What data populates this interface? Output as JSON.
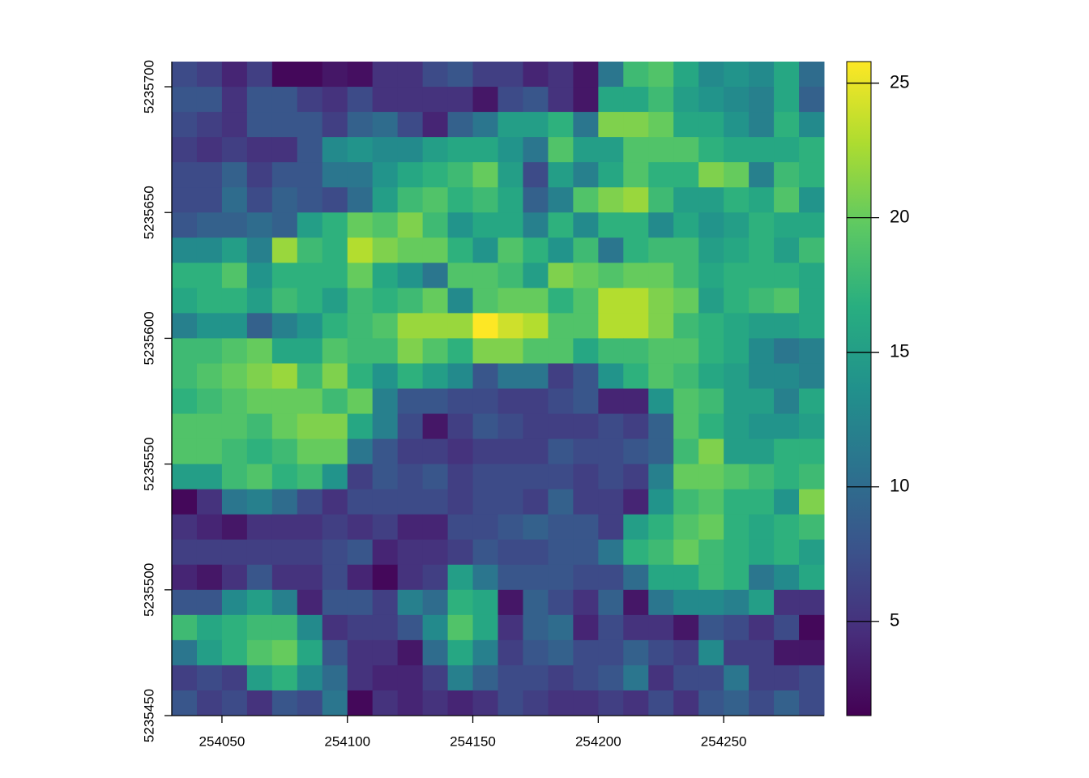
{
  "chart_data": {
    "type": "raster",
    "x": [
      254035,
      254045,
      254055,
      254065,
      254075,
      254085,
      254095,
      254105,
      254115,
      254125,
      254135,
      254145,
      254155,
      254165,
      254175,
      254185,
      254195,
      254205,
      254215,
      254225,
      254235,
      254245,
      254255,
      254265,
      254275,
      254285
    ],
    "y": [
      5235705,
      5235695,
      5235685,
      5235675,
      5235665,
      5235655,
      5235645,
      5235635,
      5235625,
      5235615,
      5235605,
      5235595,
      5235585,
      5235575,
      5235565,
      5235555,
      5235545,
      5235535,
      5235525,
      5235515,
      5235505,
      5235495,
      5235485,
      5235475,
      5235465,
      5235455
    ],
    "values": [
      [
        7,
        6,
        4,
        6,
        2,
        2,
        3,
        2.5,
        5,
        5,
        7,
        8,
        6,
        6,
        4,
        5,
        3,
        11,
        18,
        19,
        16,
        13,
        14,
        13,
        16,
        10
      ],
      [
        8,
        8,
        5,
        8,
        8,
        6,
        5,
        7,
        5,
        5,
        5,
        5,
        3,
        7,
        8,
        5,
        3,
        16,
        16,
        18,
        15,
        14,
        13,
        12,
        16,
        9
      ],
      [
        7,
        6,
        5,
        8,
        8,
        8,
        6,
        9,
        10,
        7,
        4,
        9,
        11,
        15,
        15,
        17,
        11,
        21,
        21,
        20,
        16,
        16,
        14,
        12,
        17,
        13
      ],
      [
        6,
        5,
        6,
        5,
        5,
        8,
        13,
        14,
        13,
        13,
        15,
        16,
        16,
        14,
        11,
        19,
        15,
        15,
        19,
        19,
        19,
        17,
        16,
        16,
        16,
        17
      ],
      [
        7,
        7,
        9,
        6,
        8,
        8,
        11,
        11,
        14,
        16,
        17,
        18,
        20,
        15,
        7,
        15,
        12,
        16,
        19,
        17,
        17,
        21,
        20,
        12,
        18,
        17
      ],
      [
        7,
        7,
        10,
        7,
        9,
        8,
        7,
        10,
        15,
        18,
        19,
        17,
        18,
        16,
        9,
        12,
        19,
        21,
        22,
        18,
        15,
        15,
        17,
        16,
        19,
        14
      ],
      [
        8,
        9,
        9,
        10,
        9,
        15,
        17,
        20,
        19,
        21,
        18,
        14,
        16,
        16,
        12,
        17,
        13,
        17,
        17,
        13,
        16,
        14,
        15,
        17,
        16,
        16
      ],
      [
        13,
        13,
        15,
        12,
        22,
        18,
        17,
        23,
        21,
        20,
        20,
        17,
        14,
        19,
        17,
        14,
        18,
        11,
        17,
        18,
        18,
        15,
        16,
        17,
        15,
        18
      ],
      [
        17,
        17,
        19,
        14,
        17,
        17,
        17,
        20,
        16,
        14,
        11,
        19,
        19,
        18,
        15,
        21,
        20,
        19,
        20,
        20,
        18,
        16,
        17,
        17,
        17,
        16
      ],
      [
        16,
        17,
        17,
        15,
        18,
        17,
        15,
        18,
        17,
        18,
        20,
        13,
        19,
        20,
        20,
        17,
        19,
        23,
        23,
        21,
        20,
        15,
        17,
        18,
        19,
        16
      ],
      [
        12,
        14,
        14,
        9,
        12,
        14,
        17,
        18,
        19,
        22,
        22,
        22,
        25.8,
        24,
        23,
        19,
        19,
        23,
        23,
        21,
        18,
        17,
        16,
        15,
        15,
        16
      ],
      [
        18,
        18,
        19,
        20,
        16,
        16,
        19,
        18,
        18,
        21,
        19,
        17,
        21,
        21,
        19,
        19,
        16,
        18,
        18,
        19,
        19,
        17,
        16,
        13,
        11,
        12
      ],
      [
        18,
        19,
        20,
        21,
        22,
        18,
        21,
        17,
        14,
        17,
        15,
        13,
        8,
        11,
        11,
        6,
        8,
        14,
        17,
        19,
        18,
        16,
        15,
        13,
        13,
        12
      ],
      [
        17,
        18,
        19,
        20,
        20,
        20,
        18,
        20,
        12,
        8,
        8,
        7,
        7,
        6,
        6,
        7,
        8,
        4,
        4,
        14,
        19,
        18,
        15,
        15,
        12,
        16
      ],
      [
        19,
        19,
        19,
        18,
        20,
        21,
        21,
        16,
        12,
        7,
        3,
        6,
        8,
        7,
        6,
        6,
        6,
        7,
        6,
        9,
        19,
        17,
        15,
        14,
        14,
        15
      ],
      [
        19,
        19,
        18,
        17,
        18,
        20,
        20,
        11,
        8,
        6,
        6,
        5,
        6,
        6,
        6,
        8,
        7,
        7,
        8,
        9,
        18,
        21,
        15,
        15,
        17,
        17
      ],
      [
        15,
        15,
        18,
        19,
        17,
        18,
        14,
        6,
        8,
        7,
        8,
        6,
        7,
        7,
        7,
        7,
        6,
        7,
        6,
        12,
        20,
        20,
        19,
        18,
        17,
        18
      ],
      [
        2,
        5,
        11,
        12,
        10,
        7,
        5,
        7,
        7,
        7,
        7,
        6,
        7,
        7,
        6,
        9,
        6,
        6,
        4,
        14,
        18,
        19,
        17,
        17,
        14,
        21
      ],
      [
        5,
        4,
        3,
        5,
        5,
        5,
        6,
        5,
        6,
        4,
        4,
        7,
        7,
        8,
        9,
        8,
        8,
        6,
        15,
        17,
        19,
        20,
        17,
        16,
        17,
        18
      ],
      [
        6,
        6,
        6,
        6,
        6,
        6,
        7,
        8,
        4,
        5,
        5,
        6,
        8,
        7,
        7,
        8,
        8,
        11,
        17,
        18,
        20,
        18,
        17,
        16,
        17,
        15
      ],
      [
        4,
        3,
        5,
        8,
        5,
        5,
        7,
        4,
        2,
        5,
        6,
        15,
        11,
        8,
        8,
        8,
        7,
        7,
        10,
        16,
        16,
        18,
        17,
        11,
        13,
        16
      ],
      [
        8,
        8,
        13,
        15,
        12,
        4,
        8,
        8,
        6,
        12,
        10,
        17,
        16,
        3,
        9,
        7,
        5,
        9,
        3,
        11,
        13,
        13,
        12,
        15,
        5,
        5
      ],
      [
        18,
        16,
        17,
        18,
        18,
        13,
        5,
        6,
        6,
        8,
        13,
        19,
        16,
        5,
        9,
        10,
        4,
        7,
        5,
        5,
        3,
        8,
        7,
        5,
        7,
        2
      ],
      [
        11,
        15,
        17,
        19,
        20,
        16,
        8,
        5,
        5,
        3,
        10,
        16,
        12,
        6,
        8,
        9,
        7,
        7,
        9,
        7,
        6,
        13,
        6,
        6,
        3,
        3
      ],
      [
        6,
        7,
        6,
        15,
        17,
        13,
        10,
        5,
        4,
        4,
        6,
        12,
        9,
        7,
        7,
        6,
        7,
        8,
        11,
        5,
        7,
        7,
        11,
        6,
        6,
        7
      ],
      [
        8,
        6,
        7,
        5,
        8,
        7,
        11,
        2,
        5,
        4,
        5,
        4,
        5,
        7,
        6,
        5,
        5,
        6,
        5,
        7,
        5,
        8,
        9,
        7,
        9,
        7
      ]
    ],
    "xlim": [
      254030,
      254290
    ],
    "ylim": [
      5235450,
      5235710
    ],
    "xticks": [
      254050,
      254100,
      254150,
      254200,
      254250
    ],
    "yticks": [
      5235450,
      5235500,
      5235550,
      5235600,
      5235650,
      5235700
    ],
    "zlim": [
      1.5,
      25.8
    ],
    "zticks": [
      5,
      10,
      15,
      20,
      25
    ],
    "colors": [
      "#440154",
      "#472d7b",
      "#3b528b",
      "#2c728e",
      "#21918c",
      "#28ae80",
      "#5ec962",
      "#addc30",
      "#fde725"
    ]
  }
}
